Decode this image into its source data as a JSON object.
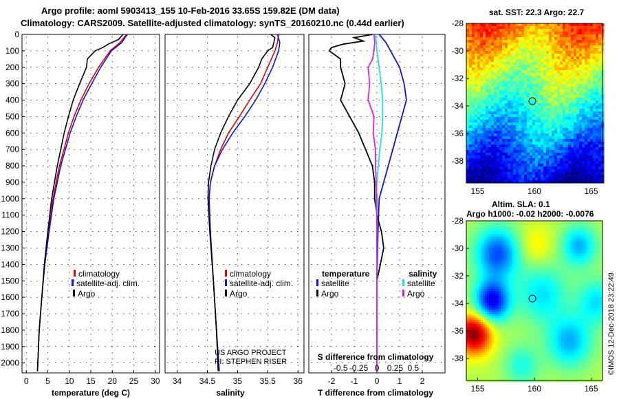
{
  "header": {
    "line1": "Argo profile: aoml 5903413_155 10-Feb-2016 33.65S 159.82E (DM data)",
    "line2": "Climatology: CARS2009. Satellite-adjusted climatology: synTS_20160210.nc (0.44d earlier)"
  },
  "colors": {
    "climatology": "#e00000",
    "satellite": "#1010e0",
    "argo": "#000000",
    "s_satellite": "#20e0e0",
    "s_argo": "#e020e0"
  },
  "chart_data": [
    {
      "type": "line",
      "id": "temperature",
      "xlabel": "temperature (deg C)",
      "ylabel": "",
      "xlim": [
        -1,
        31
      ],
      "ylim": [
        2060,
        0
      ],
      "xticks": [
        0,
        5,
        10,
        15,
        20,
        25,
        30
      ],
      "yticks": [
        0,
        100,
        200,
        300,
        400,
        500,
        600,
        700,
        800,
        900,
        1000,
        1100,
        1200,
        1300,
        1400,
        1500,
        1600,
        1700,
        1800,
        1900,
        2000
      ],
      "legend": [
        "climatology",
        "satellite-adj. clim.",
        "Argo"
      ],
      "series": [
        {
          "name": "climatology",
          "depth": [
            0,
            50,
            100,
            200,
            300,
            400,
            500,
            600,
            800,
            1000,
            1200,
            1400,
            1600,
            1800,
            2050
          ],
          "values": [
            23.3,
            21.8,
            19.5,
            16.8,
            14.6,
            12.7,
            11.1,
            9.8,
            7.7,
            6.2,
            5.2,
            4.3,
            3.6,
            3.0,
            2.6
          ]
        },
        {
          "name": "satellite-adj. clim.",
          "depth": [
            0,
            50,
            100,
            200,
            300,
            400,
            500,
            600,
            800,
            1000,
            1200,
            1400,
            1600,
            1800,
            2050
          ],
          "values": [
            23.5,
            22.2,
            19.8,
            17.3,
            15.2,
            13.2,
            11.6,
            10.2,
            8.0,
            6.4,
            5.3,
            4.3,
            3.6,
            3.0,
            2.6
          ]
        },
        {
          "name": "Argo",
          "depth": [
            0,
            30,
            60,
            80,
            100,
            150,
            200,
            300,
            400,
            500,
            600,
            700,
            800,
            1000,
            1200,
            1400,
            1600,
            1800,
            2050
          ],
          "values": [
            22.5,
            21.5,
            19.0,
            17.8,
            16.0,
            14.2,
            14.0,
            12.4,
            10.9,
            9.8,
            8.8,
            8.0,
            7.2,
            5.9,
            5.0,
            4.2,
            3.6,
            3.0,
            2.6
          ]
        }
      ]
    },
    {
      "type": "line",
      "id": "salinity",
      "xlabel": "salinity",
      "xlim": [
        33.8,
        36.1
      ],
      "ylim": [
        2060,
        0
      ],
      "xticks": [
        34,
        34.5,
        35,
        35.5,
        36
      ],
      "xticklabels": [
        "34",
        "34.5",
        "35",
        "35.5",
        "36"
      ],
      "legend": [
        "climatology",
        "satellite-adj. clim.",
        "Argo"
      ],
      "series": [
        {
          "name": "climatology",
          "depth": [
            0,
            50,
            100,
            200,
            300,
            400,
            500,
            600,
            700,
            800,
            900,
            1000,
            1200,
            1500,
            1800,
            2050
          ],
          "values": [
            35.68,
            35.66,
            35.62,
            35.5,
            35.38,
            35.2,
            35.03,
            34.85,
            34.72,
            34.62,
            34.55,
            34.53,
            34.55,
            34.6,
            34.65,
            34.68
          ]
        },
        {
          "name": "satellite-adj. clim.",
          "depth": [
            0,
            50,
            100,
            200,
            300,
            400,
            500,
            600,
            700,
            800,
            900,
            1000,
            1200,
            1500,
            1800,
            2050
          ],
          "values": [
            35.66,
            35.7,
            35.68,
            35.58,
            35.45,
            35.3,
            35.12,
            34.92,
            34.75,
            34.62,
            34.55,
            34.53,
            34.55,
            34.6,
            34.65,
            34.7
          ]
        },
        {
          "name": "Argo",
          "depth": [
            0,
            20,
            50,
            80,
            100,
            150,
            200,
            300,
            400,
            500,
            600,
            700,
            800,
            900,
            1000,
            1200,
            1500,
            1800,
            2050
          ],
          "values": [
            35.55,
            35.62,
            35.6,
            35.58,
            35.5,
            35.4,
            35.35,
            35.2,
            35.0,
            34.85,
            34.72,
            34.62,
            34.56,
            34.52,
            34.51,
            34.54,
            34.6,
            34.65,
            34.68
          ]
        }
      ]
    },
    {
      "type": "line",
      "id": "differences",
      "xlabel": "T difference from climatology",
      "title_bottom": "S difference from climatology",
      "xlim": [
        -3,
        3
      ],
      "ylim": [
        2060,
        0
      ],
      "xticks": [
        -2,
        -1,
        0,
        1,
        2
      ],
      "sxticks": [
        -0.5,
        -0.25,
        0,
        0.25,
        0.5
      ],
      "sxticklabels": [
        "-0.5",
        "-0.25",
        "0",
        "0.25",
        "0.5"
      ],
      "legend_temperature": {
        "title": "temperature",
        "items": [
          "satellite",
          "Argo"
        ]
      },
      "legend_salinity": {
        "title": "salinity",
        "items": [
          "satellite",
          "Argo"
        ]
      },
      "series": [
        {
          "name": "temperature satellite",
          "depth": [
            0,
            50,
            100,
            150,
            200,
            300,
            400,
            500,
            600,
            700,
            800,
            900,
            1000,
            1200,
            1500,
            2050
          ],
          "values": [
            0.1,
            0.4,
            0.6,
            0.8,
            1.0,
            1.2,
            1.3,
            1.1,
            0.9,
            0.7,
            0.5,
            0.3,
            0.1,
            0.05,
            0.0,
            0.0
          ]
        },
        {
          "name": "temperature Argo",
          "depth": [
            0,
            20,
            40,
            60,
            80,
            100,
            150,
            200,
            300,
            400,
            500,
            600,
            700,
            800,
            900,
            1000,
            1100,
            1200,
            1300,
            1500,
            2050
          ],
          "values": [
            -0.2,
            -1.0,
            -0.6,
            -1.5,
            -2.0,
            -2.1,
            -1.6,
            -1.6,
            -1.4,
            -1.6,
            -1.2,
            -0.8,
            -0.5,
            -0.2,
            -0.1,
            -0.1,
            0.0,
            0.2,
            0.3,
            0.0,
            0.0
          ]
        },
        {
          "name": "salinity satellite",
          "depth": [
            0,
            100,
            200,
            300,
            400,
            500,
            600,
            700,
            800,
            900,
            1000,
            1200,
            1500,
            2050
          ],
          "values": [
            -0.02,
            0.0,
            0.03,
            0.06,
            0.08,
            0.08,
            0.07,
            0.04,
            0.02,
            0.0,
            -0.01,
            0.0,
            0.0,
            0.0
          ]
        },
        {
          "name": "salinity Argo",
          "depth": [
            0,
            50,
            100,
            150,
            200,
            300,
            400,
            500,
            600,
            700,
            800,
            900,
            1000,
            1200,
            1500,
            2050
          ],
          "values": [
            -0.04,
            -0.03,
            -0.04,
            -0.06,
            -0.12,
            -0.1,
            -0.12,
            -0.04,
            -0.05,
            -0.02,
            -0.02,
            -0.01,
            0.0,
            0.0,
            0.0,
            0.0
          ]
        }
      ]
    },
    {
      "type": "heatmap",
      "id": "sst_map",
      "title": "sat. SST: 22.3 Argo: 22.7",
      "xlim": [
        154,
        166
      ],
      "ylim": [
        -39.6,
        -28
      ],
      "xticks": [
        155,
        160,
        165
      ],
      "yticks": [
        -28,
        -30,
        -32,
        -34,
        -36,
        -38
      ],
      "float_position": [
        159.82,
        -33.65
      ]
    },
    {
      "type": "heatmap",
      "id": "sla_map",
      "title": "Altim. SLA: 0.1",
      "subtitle": "Argo h1000: -0.02 h2000: -0.0076",
      "xlim": [
        154,
        166
      ],
      "ylim": [
        -39.6,
        -28
      ],
      "xticks": [
        155,
        160,
        165
      ],
      "yticks": [
        -28,
        -30,
        -32,
        -34,
        -36,
        -38
      ],
      "float_position": [
        159.82,
        -33.65
      ]
    }
  ],
  "annotations": {
    "project": "US ARGO PROJECT",
    "pi": "PI: STEPHEN RISER",
    "credit": "©IMOS 12-Dec-2018 23:22:49"
  }
}
